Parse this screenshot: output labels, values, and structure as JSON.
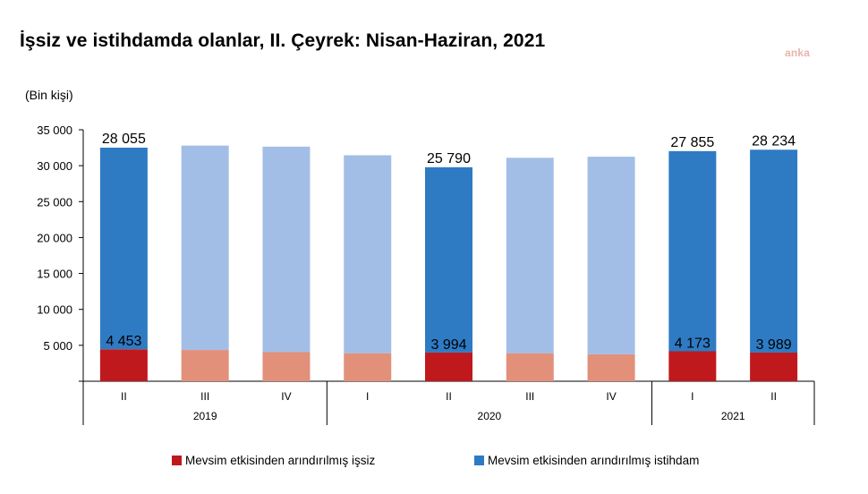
{
  "header": {
    "title": "İşsiz ve istihdamda olanlar, II. Çeyrek: Nisan-Haziran, 2021",
    "watermark": "anka"
  },
  "chart_data": {
    "type": "bar",
    "stacked": true,
    "ylabel": "(Bin kişi)",
    "ylim": [
      0,
      35000
    ],
    "yticks": [
      0,
      5000,
      10000,
      15000,
      20000,
      25000,
      30000,
      35000
    ],
    "ytick_labels": [
      "",
      "5 000",
      "10 000",
      "15 000",
      "20 000",
      "25 000",
      "30 000",
      "35 000"
    ],
    "categories": [
      "II",
      "III",
      "IV",
      "I",
      "II",
      "III",
      "IV",
      "I",
      "II"
    ],
    "year_groups": [
      {
        "label": "2019",
        "start": 0,
        "end": 2
      },
      {
        "label": "2020",
        "start": 3,
        "end": 6
      },
      {
        "label": "2021",
        "start": 7,
        "end": 8
      }
    ],
    "highlight": [
      true,
      false,
      false,
      false,
      true,
      false,
      false,
      true,
      true
    ],
    "series": [
      {
        "name": "Mevsim etkisinden arındırılmış işsiz",
        "color": "#c0191d",
        "faded_color": "#e2907a",
        "values": [
          4453,
          4350,
          4050,
          3900,
          3994,
          3900,
          3750,
          4173,
          3989
        ],
        "labels": [
          "4 453",
          "",
          "",
          "",
          "3 994",
          "",
          "",
          "4 173",
          "3 989"
        ]
      },
      {
        "name": "Mevsim etkisinden arındırılmış istihdam",
        "color": "#2e7bc4",
        "faded_color": "#a3bee6",
        "values": [
          28055,
          28450,
          28600,
          27550,
          25790,
          27200,
          27500,
          27855,
          28234
        ],
        "labels": [
          "28 055",
          "",
          "",
          "",
          "25 790",
          "",
          "",
          "27 855",
          "28 234"
        ]
      }
    ],
    "legend_position": "bottom",
    "grid": false
  }
}
